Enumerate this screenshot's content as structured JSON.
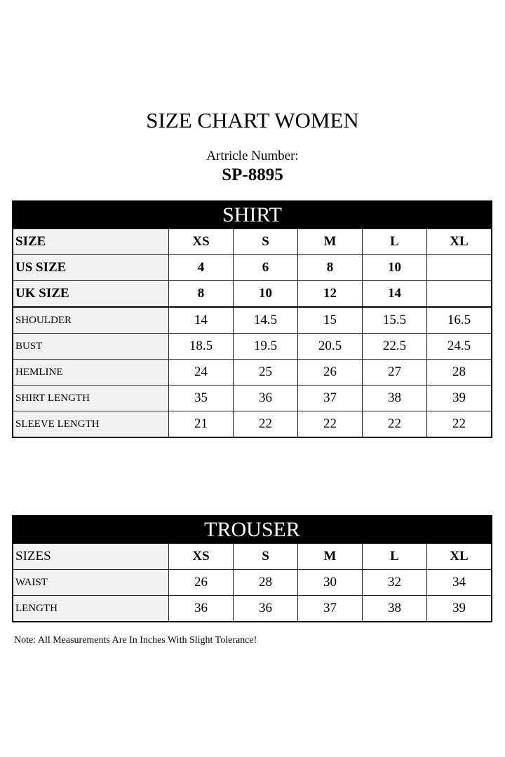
{
  "title": "SIZE CHART WOMEN",
  "article_label": "Artricle Number:",
  "article_number": "SP-8895",
  "shirt": {
    "heading": "SHIRT",
    "rows": [
      {
        "label": "SIZE",
        "values": [
          "XS",
          "S",
          "M",
          "L",
          "XL"
        ],
        "bold": true
      },
      {
        "label": "US SIZE",
        "values": [
          "4",
          "6",
          "8",
          "10",
          ""
        ],
        "bold": true
      },
      {
        "label": "UK SIZE",
        "values": [
          "8",
          "10",
          "12",
          "14",
          ""
        ],
        "bold": true
      },
      {
        "label": "SHOULDER",
        "values": [
          "14",
          "14.5",
          "15",
          "15.5",
          "16.5"
        ]
      },
      {
        "label": "BUST",
        "values": [
          "18.5",
          "19.5",
          "20.5",
          "22.5",
          "24.5"
        ]
      },
      {
        "label": "HEMLINE",
        "values": [
          "24",
          "25",
          "26",
          "27",
          "28"
        ]
      },
      {
        "label": "SHIRT LENGTH",
        "values": [
          "35",
          "36",
          "37",
          "38",
          "39"
        ]
      },
      {
        "label": "SLEEVE LENGTH",
        "values": [
          "21",
          "22",
          "22",
          "22",
          "22"
        ]
      }
    ]
  },
  "trouser": {
    "heading": "TROUSER",
    "rows": [
      {
        "label": "SIZES",
        "values": [
          "XS",
          "S",
          "M",
          "L",
          "XL"
        ],
        "bold_values": true
      },
      {
        "label": "WAIST",
        "values": [
          "26",
          "28",
          "30",
          "32",
          "34"
        ]
      },
      {
        "label": "LENGTH",
        "values": [
          "36",
          "36",
          "37",
          "38",
          "39"
        ]
      }
    ]
  },
  "note": "Note: All Measurements Are In Inches With Slight Tolerance!"
}
